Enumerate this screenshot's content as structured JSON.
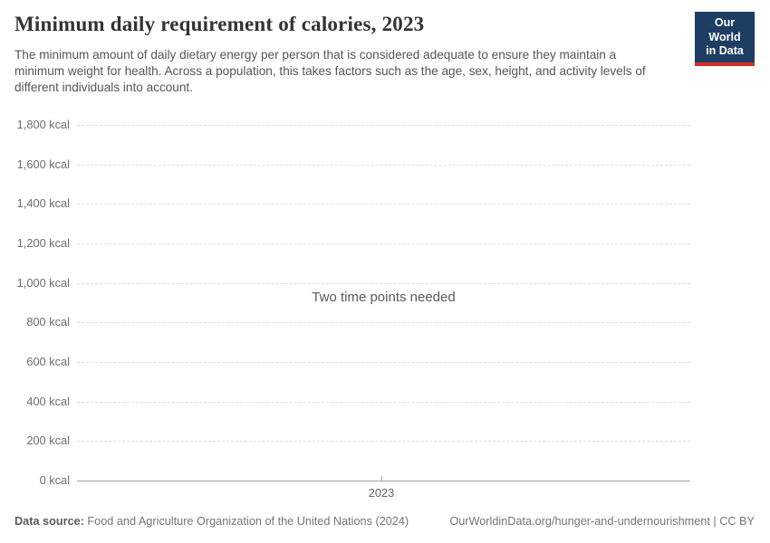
{
  "header": {
    "title": "Minimum daily requirement of calories, 2023",
    "subtitle": "The minimum amount of daily dietary energy per person that is considered adequate to ensure they maintain a minimum weight for health. Across a population, this takes factors such as the age, sex, height, and activity levels of different individuals into account.",
    "logo": {
      "line1": "Our World",
      "line2": "in Data",
      "background": "#1d3d63",
      "stripe": "#d22d26"
    }
  },
  "chart_data": {
    "type": "line",
    "title": "Minimum daily requirement of calories, 2023",
    "unit": "kcal",
    "ylim": [
      0,
      1800
    ],
    "y_ticks": [
      1800,
      1600,
      1400,
      1200,
      1000,
      800,
      600,
      400,
      200,
      0
    ],
    "y_tick_labels": [
      "1,800 kcal",
      "1,600 kcal",
      "1,400 kcal",
      "1,200 kcal",
      "1,000 kcal",
      "800 kcal",
      "600 kcal",
      "400 kcal",
      "200 kcal",
      "0 kcal"
    ],
    "x_ticks": [
      "2023"
    ],
    "series": [],
    "empty_message": "Two time points needed",
    "grid": "horizontal-dashed",
    "legend": "none"
  },
  "footer": {
    "datasource_label": "Data source:",
    "datasource_value": "Food and Agriculture Organization of the United Nations (2024)",
    "link": "OurWorldinData.org/hunger-and-undernourishment | CC BY"
  },
  "colors": {
    "gridline": "#dcdcdc",
    "axis_line": "#a3a3a3",
    "tick_label": "#6e6e6e",
    "title": "#333333",
    "subtitle": "#555555"
  }
}
